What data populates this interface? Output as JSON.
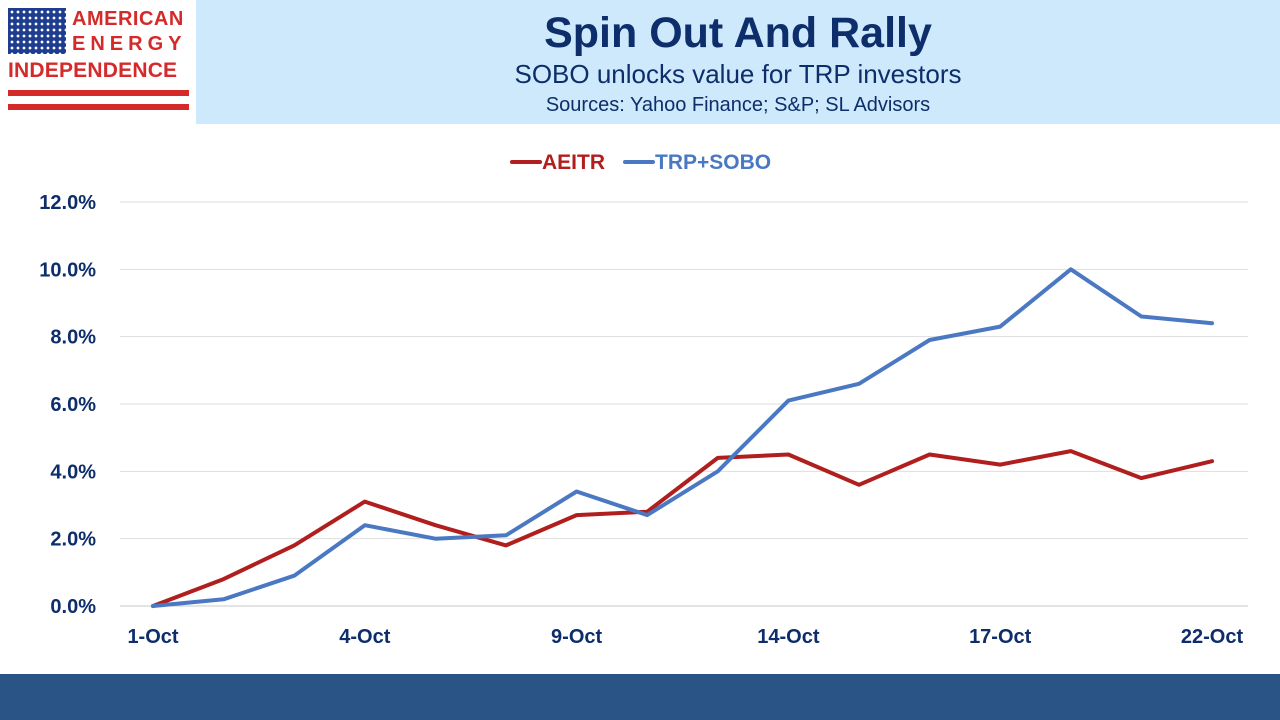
{
  "logo": {
    "line1": "AMERICAN",
    "line2": "ENERGY",
    "line3": "INDEPENDENCE",
    "colors": {
      "red": "#d42a2a",
      "blue": "#1f3d8f"
    }
  },
  "header": {
    "title": "Spin Out And Rally",
    "subtitle": "SOBO unlocks value for TRP investors",
    "sources": "Sources: Yahoo Finance; S&P; SL Advisors"
  },
  "chart_data": {
    "type": "line",
    "title": "Spin Out And Rally",
    "subtitle": "SOBO unlocks value for TRP investors",
    "x": [
      "1-Oct",
      "2-Oct",
      "3-Oct",
      "4-Oct",
      "7-Oct",
      "8-Oct",
      "9-Oct",
      "10-Oct",
      "11-Oct",
      "14-Oct",
      "15-Oct",
      "16-Oct",
      "17-Oct",
      "18-Oct",
      "21-Oct",
      "22-Oct"
    ],
    "x_tick_labels": [
      "1-Oct",
      "4-Oct",
      "9-Oct",
      "14-Oct",
      "17-Oct",
      "22-Oct"
    ],
    "x_tick_indices": [
      0,
      3,
      6,
      9,
      12,
      15
    ],
    "series": [
      {
        "name": "AEITR",
        "color": "#b01e1e",
        "values": [
          0.0,
          0.8,
          1.8,
          3.1,
          2.4,
          1.8,
          2.7,
          2.8,
          4.4,
          4.5,
          3.6,
          4.5,
          4.2,
          4.6,
          3.8,
          4.3
        ]
      },
      {
        "name": "TRP+SOBO",
        "color": "#4a78c2",
        "values": [
          0.0,
          0.2,
          0.9,
          2.4,
          2.0,
          2.1,
          3.4,
          2.7,
          4.0,
          6.1,
          6.6,
          7.9,
          8.3,
          10.0,
          8.6,
          8.4
        ]
      }
    ],
    "y_ticks": [
      "0.0%",
      "2.0%",
      "4.0%",
      "6.0%",
      "8.0%",
      "10.0%",
      "12.0%"
    ],
    "ylim": [
      0,
      12
    ],
    "y_unit": "%",
    "grid": true,
    "legend_position": "top-center",
    "xlabel": "",
    "ylabel": ""
  }
}
